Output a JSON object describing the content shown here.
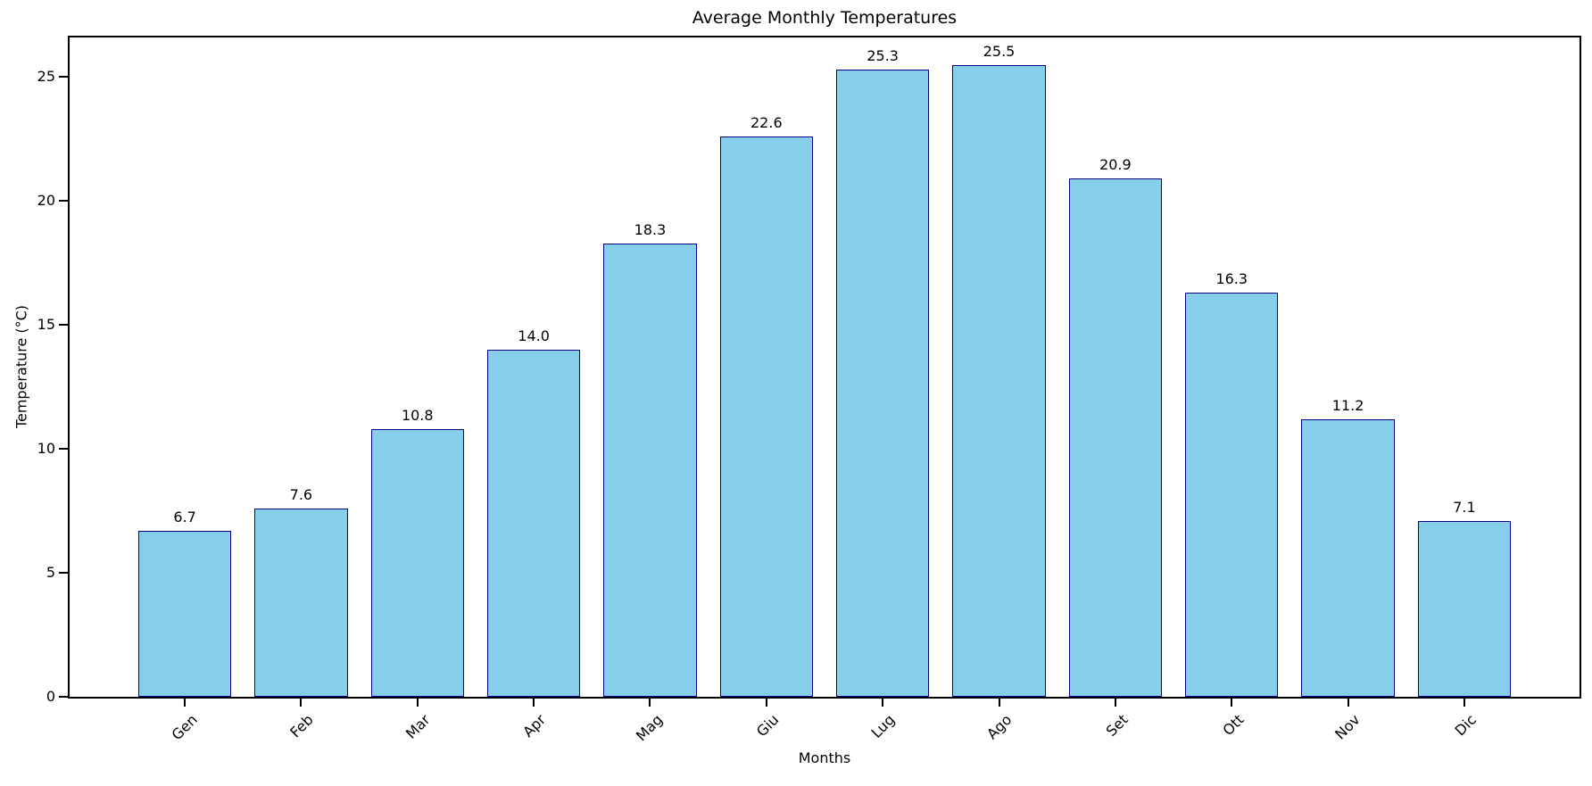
{
  "figure": {
    "background_color": "#ffffff"
  },
  "chart_data": {
    "type": "bar",
    "title": "Average Monthly Temperatures",
    "xlabel": "Months",
    "ylabel": "Temperature (°C)",
    "categories": [
      "Gen",
      "Feb",
      "Mar",
      "Apr",
      "Mag",
      "Giu",
      "Lug",
      "Ago",
      "Set",
      "Ott",
      "Nov",
      "Dic"
    ],
    "values": [
      6.7,
      7.6,
      10.8,
      14.0,
      18.3,
      22.6,
      25.3,
      25.5,
      20.9,
      16.3,
      11.2,
      7.1
    ],
    "value_labels": [
      "6.7",
      "7.6",
      "10.8",
      "14.0",
      "18.3",
      "22.6",
      "25.3",
      "25.5",
      "20.9",
      "16.3",
      "11.2",
      "7.1"
    ],
    "yticks": [
      0,
      5,
      10,
      15,
      20,
      25
    ],
    "ytick_labels": [
      "0",
      "5",
      "10",
      "15",
      "20",
      "25"
    ],
    "ylim": [
      0,
      26.6
    ],
    "x_tick_rotation_deg": 45,
    "bar_rel_width": 0.8,
    "grid": false,
    "legend": null,
    "bar_fill_color": "#87CEEB",
    "bar_edge_color": "#000080",
    "axis_color": "#000000",
    "text_color": "#000000"
  }
}
